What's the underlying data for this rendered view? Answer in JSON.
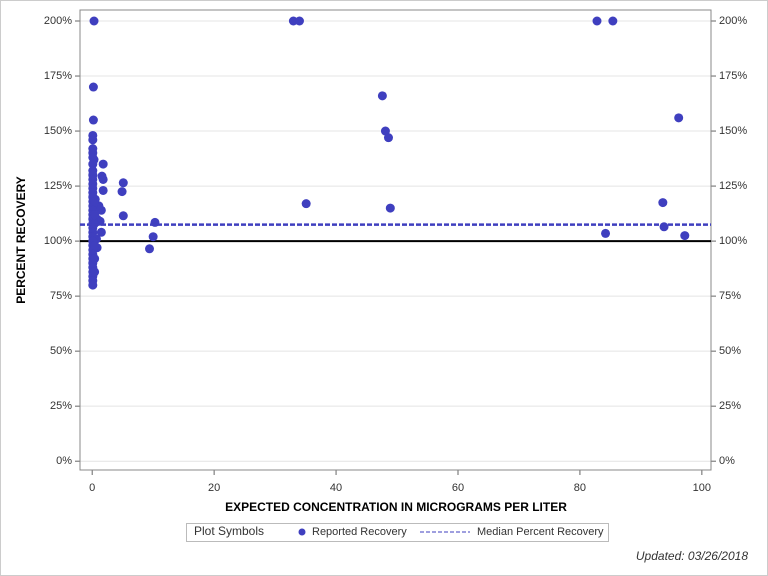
{
  "chart_data": {
    "type": "scatter",
    "xlabel": "EXPECTED CONCENTRATION IN MICROGRAMS PER LITER",
    "ylabel": "PERCENT RECOVERY",
    "xlim": [
      -2,
      101.5
    ],
    "ylim": [
      -4,
      205
    ],
    "xticks": [
      0,
      20,
      40,
      60,
      80,
      100
    ],
    "yticks": [
      {
        "value": 0,
        "label": "0%"
      },
      {
        "value": 25,
        "label": "25%"
      },
      {
        "value": 50,
        "label": "50%"
      },
      {
        "value": 75,
        "label": "75%"
      },
      {
        "value": 100,
        "label": "100%"
      },
      {
        "value": 125,
        "label": "125%"
      },
      {
        "value": 150,
        "label": "150%"
      },
      {
        "value": 175,
        "label": "175%"
      },
      {
        "value": 200,
        "label": "200%"
      }
    ],
    "grid": true,
    "reference_line": 100,
    "median_line": {
      "name": "Median Percent Recovery",
      "value": 107.5,
      "color": "#3f3fbf"
    },
    "legend_title": "Plot Symbols",
    "series": [
      {
        "name": "Reported Recovery",
        "color": "#3f3fbf",
        "x": [
          0.3,
          33.0,
          34.0,
          82.8,
          85.4,
          0.2,
          0.2,
          47.6,
          48.1,
          48.6,
          35.1,
          48.9,
          96.2,
          93.6,
          93.8,
          84.2,
          97.2,
          10.3,
          10.0,
          9.4,
          5.1,
          4.9,
          5.1,
          1.8,
          1.6,
          1.8,
          1.8,
          1.5,
          1.1,
          1.3,
          1.5,
          0.8,
          0.8,
          0.7,
          0.5,
          0.3,
          0.1,
          0.1,
          0.1,
          0.1,
          0.1,
          0.1,
          0.1,
          0.1,
          0.1,
          0.1,
          0.1,
          0.1,
          0.1,
          0.1,
          0.1,
          0.1,
          0.1,
          0.1,
          0.1,
          0.1,
          0.1,
          0.1,
          0.1,
          0.1,
          0.1,
          0.1,
          0.1,
          0.1,
          0.1,
          0.1,
          0.1,
          0.1,
          0.1,
          0.4,
          0.4,
          0.4,
          0.4,
          0.4,
          0.4
        ],
        "values": [
          200,
          200,
          200,
          200,
          200,
          170,
          155,
          166,
          150,
          147,
          117,
          115,
          156,
          117.5,
          106.5,
          103.5,
          102.5,
          108.5,
          102,
          96.5,
          126.5,
          122.5,
          111.5,
          135,
          129.5,
          128,
          123,
          114,
          116,
          109,
          104,
          110,
          97,
          101,
          119,
          137,
          148,
          146,
          142,
          140,
          138,
          135,
          132,
          130,
          128,
          126,
          124,
          122,
          120,
          118,
          116,
          114,
          112,
          110,
          108,
          106,
          104,
          102,
          100,
          98,
          96,
          94,
          92,
          90,
          88,
          86,
          84,
          82,
          80,
          118,
          112,
          108,
          98,
          92,
          86
        ]
      }
    ]
  },
  "footer": "Updated: 03/26/2018"
}
